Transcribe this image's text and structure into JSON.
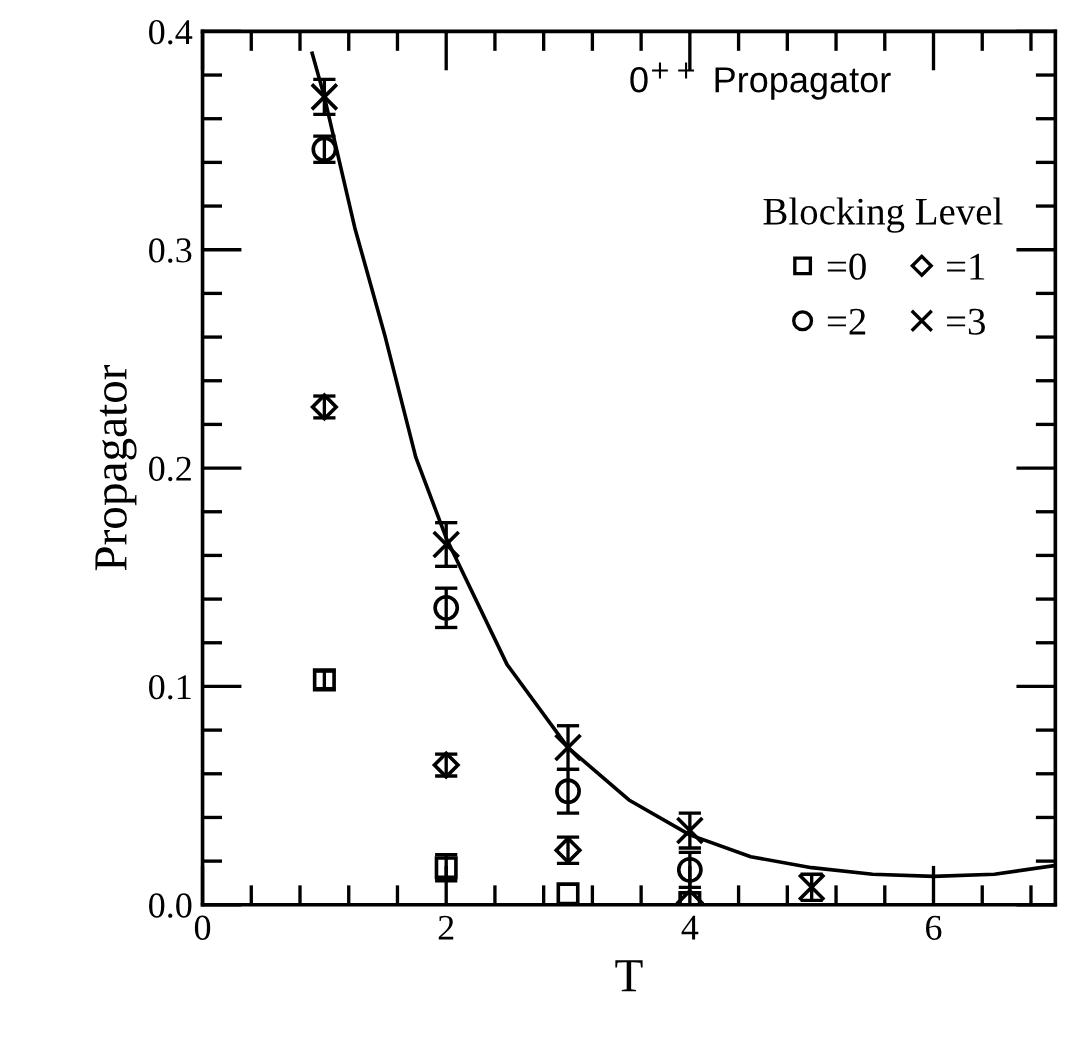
{
  "chart_data": {
    "type": "scatter",
    "title": "0$^{++}$ Propagator",
    "xlabel": "T",
    "ylabel": "Propagator",
    "legend_title": "Blocking Level",
    "legend": "top right",
    "grid": false,
    "xlim": [
      0,
      7
    ],
    "ylim": [
      0,
      0.4
    ],
    "xticks": [
      0,
      2,
      4,
      6
    ],
    "yticks": [
      {
        "value": 0,
        "label": "0.0"
      },
      0.1,
      0.2,
      0.3,
      0.4
    ],
    "series": [
      {
        "name": "=0",
        "marker": "square",
        "color": "#000000",
        "x": [
          1,
          2,
          3,
          4
        ],
        "values": [
          0.103,
          0.017,
          0.005,
          0.001
        ],
        "errors": [
          0.004,
          0.006,
          null,
          null
        ]
      },
      {
        "name": "=1",
        "marker": "diamond",
        "color": "#000000",
        "x": [
          1,
          2,
          3,
          4
        ],
        "values": [
          0.228,
          0.064,
          0.025,
          0.001
        ],
        "errors": [
          0.005,
          0.005,
          0.006,
          null
        ]
      },
      {
        "name": "=2",
        "marker": "circle",
        "color": "#000000",
        "x": [
          1,
          2,
          3,
          4
        ],
        "values": [
          0.346,
          0.136,
          0.052,
          0.016
        ],
        "errors": [
          0.006,
          0.009,
          0.01,
          0.008
        ]
      },
      {
        "name": "=3",
        "marker": "cross",
        "color": "#000000",
        "x": [
          1,
          2,
          3,
          4,
          5
        ],
        "values": [
          0.37,
          0.165,
          0.072,
          0.034,
          0.008
        ],
        "errors": [
          0.008,
          0.01,
          0.01,
          0.008,
          0.006
        ]
      },
      {
        "type": "line",
        "marker": "none",
        "line_style": "solid",
        "color": "#000000",
        "x": [
          0.9,
          1,
          1.25,
          1.5,
          1.75,
          2,
          2.5,
          3,
          3.5,
          4,
          4.5,
          5,
          5.5,
          6,
          6.5,
          7
        ],
        "values": [
          0.39,
          0.37,
          0.31,
          0.26,
          0.205,
          0.168,
          0.11,
          0.072,
          0.048,
          0.032,
          0.022,
          0.017,
          0.014,
          0.013,
          0.014,
          0.018
        ]
      }
    ]
  }
}
